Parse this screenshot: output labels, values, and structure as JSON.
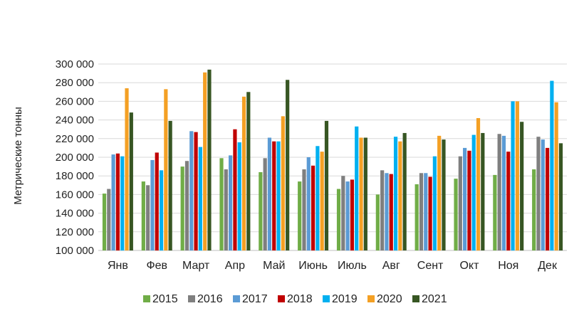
{
  "chart_data": {
    "type": "bar",
    "title": "",
    "xlabel": "",
    "ylabel": "Метрические тонны",
    "ylim": [
      100000,
      300000
    ],
    "yticks": [
      "100 000",
      "120 000",
      "140 000",
      "160 000",
      "180 000",
      "200 000",
      "220 000",
      "240 000",
      "260 000",
      "280 000",
      "300 000"
    ],
    "grid": true,
    "legend_position": "bottom",
    "categories": [
      "Янв",
      "Фев",
      "Март",
      "Апр",
      "Май",
      "Июнь",
      "Июль",
      "Авг",
      "Сент",
      "Окт",
      "Ноя",
      "Дек"
    ],
    "series": [
      {
        "name": "2015",
        "color": "#70ad47",
        "values": [
          161000,
          174000,
          190000,
          199000,
          184000,
          174000,
          166000,
          160000,
          171000,
          177000,
          181000,
          187000
        ]
      },
      {
        "name": "2016",
        "color": "#7f7f7f",
        "values": [
          166000,
          170000,
          196000,
          187000,
          199000,
          187000,
          180000,
          186000,
          183000,
          201000,
          225000,
          222000
        ]
      },
      {
        "name": "2017",
        "color": "#5b9bd5",
        "values": [
          203000,
          197000,
          228000,
          202000,
          221000,
          200000,
          174000,
          183000,
          183000,
          210000,
          223000,
          219000
        ]
      },
      {
        "name": "2018",
        "color": "#c00000",
        "values": [
          204000,
          205000,
          227000,
          230000,
          217000,
          191000,
          176000,
          182000,
          179000,
          207000,
          206000,
          210000
        ]
      },
      {
        "name": "2019",
        "color": "#00b0f0",
        "values": [
          201000,
          186000,
          211000,
          216000,
          217000,
          212000,
          233000,
          222000,
          201000,
          224000,
          260000,
          282000
        ]
      },
      {
        "name": "2020",
        "color": "#f4a024",
        "values": [
          274000,
          273000,
          291000,
          265000,
          244000,
          206000,
          221000,
          217000,
          223000,
          242000,
          260000,
          259000
        ]
      },
      {
        "name": "2021",
        "color": "#375623",
        "values": [
          248000,
          239000,
          294000,
          270000,
          283000,
          239000,
          221000,
          226000,
          219000,
          226000,
          238000,
          215000
        ]
      }
    ]
  }
}
